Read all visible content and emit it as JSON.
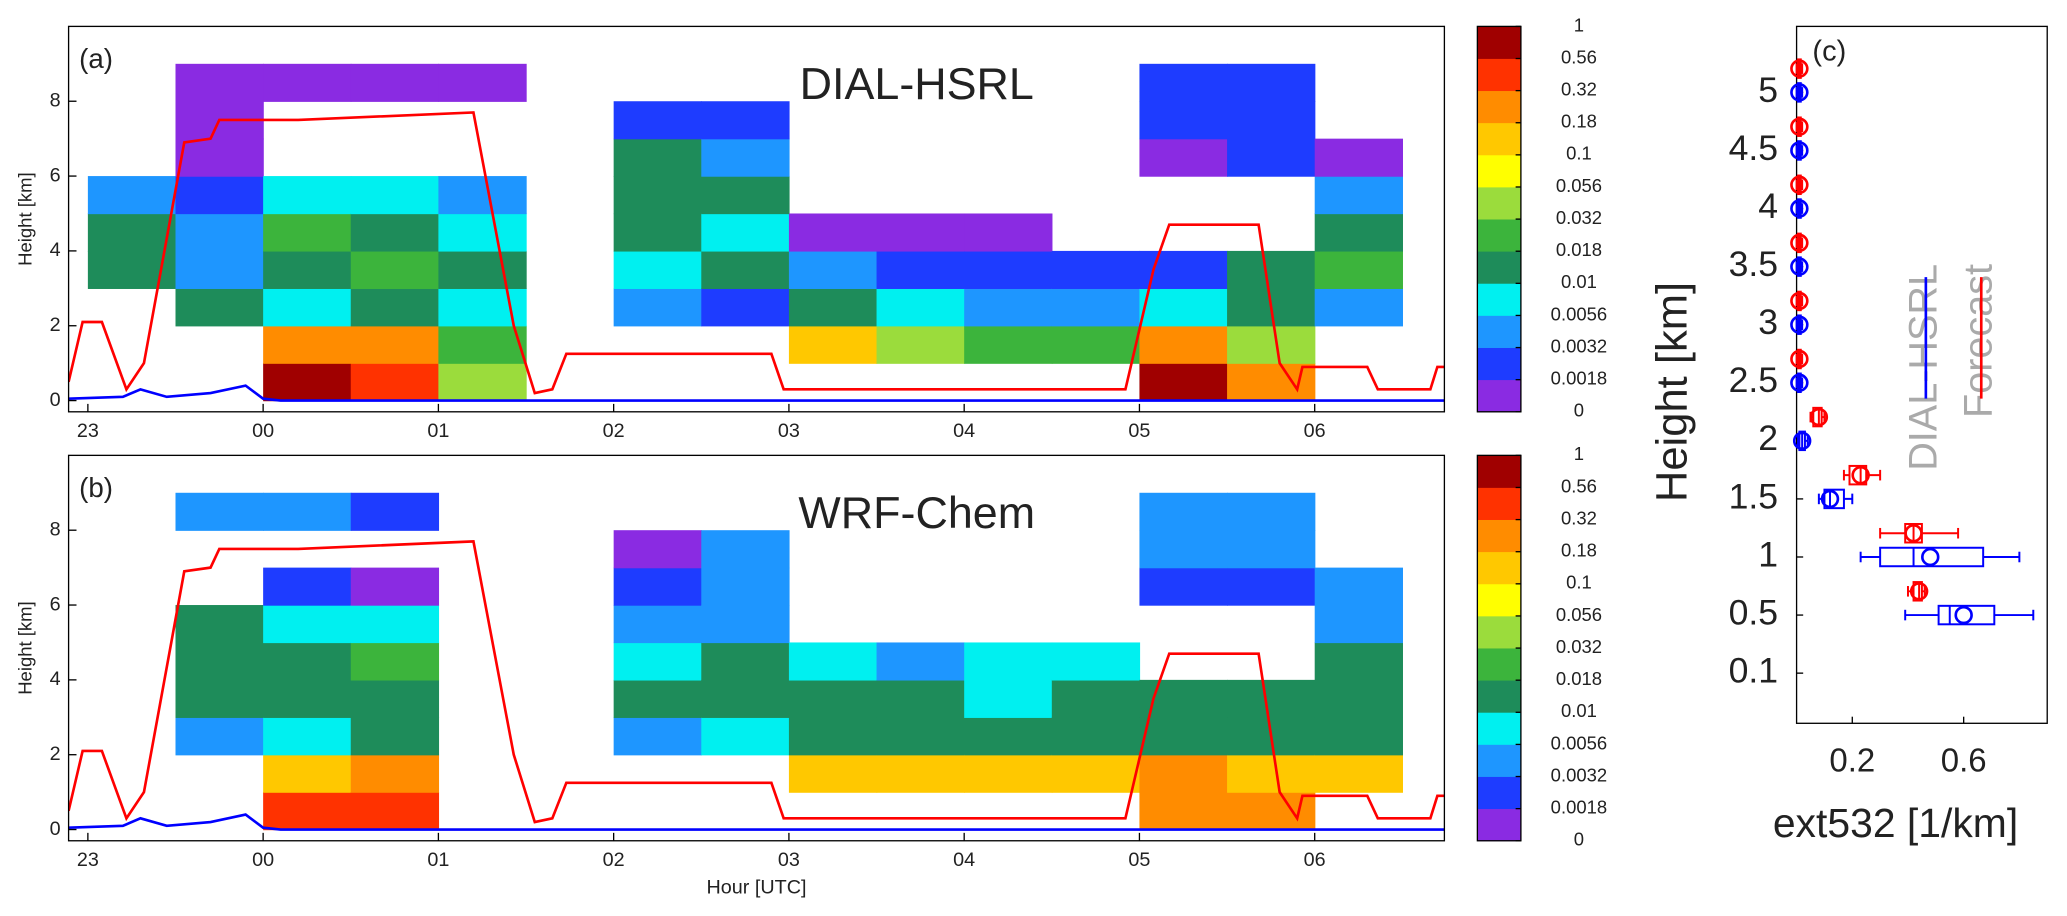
{
  "chart_data": [
    {
      "type": "heatmap",
      "label": "(a)",
      "title": "DIAL-HSRL",
      "ylabel": "Height [km]",
      "xlim": [
        22.89,
        30.74
      ],
      "ylim": [
        -0.3,
        10
      ],
      "xticks": [
        23,
        {
          "value": 24,
          "label": "00"
        },
        {
          "value": 25,
          "label": "01"
        },
        {
          "value": 26,
          "label": "02"
        },
        {
          "value": 27,
          "label": "03"
        },
        {
          "value": 28,
          "label": "04"
        },
        {
          "value": 29,
          "label": "05"
        },
        {
          "value": 30,
          "label": "06"
        }
      ],
      "yticks": [
        0,
        2,
        4,
        6,
        8
      ],
      "x_edges": [
        23,
        23.5,
        24,
        24.5,
        25,
        25.5,
        26,
        26.5,
        27,
        27.5,
        28,
        28.5,
        29,
        29.5,
        30,
        30.5
      ],
      "y_edges": [
        0,
        1,
        2,
        3,
        4,
        5,
        6,
        7,
        8,
        9
      ],
      "z": [
        [
          null,
          null,
          null,
          0.01,
          0.01,
          0.005,
          null,
          null,
          null
        ],
        [
          null,
          null,
          0.01,
          0.005,
          0.005,
          0.003,
          0.001,
          0.001,
          0.001
        ],
        [
          0.6,
          0.3,
          0.008,
          0.015,
          0.02,
          0.008,
          null,
          null,
          0.001
        ],
        [
          0.4,
          0.2,
          0.01,
          0.02,
          0.015,
          0.008,
          null,
          null,
          0.001
        ],
        [
          0.05,
          0.02,
          0.008,
          0.01,
          0.008,
          0.005,
          null,
          null,
          0.001
        ],
        [
          null,
          null,
          null,
          null,
          null,
          null,
          null,
          null,
          null
        ],
        [
          null,
          null,
          0.005,
          0.008,
          0.01,
          0.015,
          0.01,
          0.003,
          null
        ],
        [
          null,
          null,
          0.003,
          0.01,
          0.008,
          0.01,
          0.005,
          0.002,
          null
        ],
        [
          null,
          0.1,
          0.01,
          0.005,
          0.001,
          null,
          null,
          null,
          null
        ],
        [
          null,
          0.05,
          0.008,
          0.003,
          0.001,
          null,
          null,
          null,
          null
        ],
        [
          null,
          0.03,
          0.005,
          0.003,
          0.001,
          null,
          null,
          null,
          null
        ],
        [
          null,
          0.02,
          0.005,
          0.002,
          null,
          null,
          null,
          null,
          null
        ],
        [
          0.6,
          0.2,
          0.008,
          0.003,
          null,
          null,
          0.001,
          0.002,
          0.003
        ],
        [
          0.3,
          0.05,
          0.01,
          0.01,
          null,
          null,
          0.003,
          0.003,
          0.002
        ],
        [
          null,
          null,
          0.005,
          0.02,
          0.01,
          0.005,
          0.001,
          null,
          null
        ]
      ],
      "colorbar": {
        "ticks": [
          0,
          0.0018,
          0.0032,
          0.0056,
          0.01,
          0.018,
          0.032,
          0.056,
          0.1,
          0.18,
          0.32,
          0.56,
          1
        ],
        "colors": [
          "#8a2be2",
          "#1e3cff",
          "#1e96ff",
          "#00f0f0",
          "#1e8c5a",
          "#3cb43c",
          "#9bdc3c",
          "#ffff00",
          "#ffc800",
          "#ff8c00",
          "#ff3200",
          "#a00000"
        ]
      },
      "series": [
        {
          "color": "#ff0000",
          "x": [
            22.89,
            22.97,
            23.08,
            23.22,
            23.32,
            23.55,
            23.7,
            23.75,
            24.2,
            25.2,
            25.43,
            25.55,
            25.65,
            25.73,
            26.9,
            26.97,
            28.92,
            29.08,
            29.17,
            29.68,
            29.8,
            29.9,
            29.93,
            30.3,
            30.36,
            30.66,
            30.7,
            30.74
          ],
          "values": [
            0.5,
            2.1,
            2.1,
            0.3,
            1.0,
            6.9,
            7.0,
            7.5,
            7.5,
            7.7,
            2.0,
            0.2,
            0.3,
            1.25,
            1.25,
            0.3,
            0.3,
            3.5,
            4.7,
            4.7,
            1.0,
            0.3,
            0.9,
            0.9,
            0.3,
            0.3,
            0.9,
            0.9
          ]
        },
        {
          "color": "#0000ff",
          "x": [
            22.89,
            23.2,
            23.3,
            23.45,
            23.7,
            23.9,
            24.0,
            24.1,
            30.74
          ],
          "values": [
            0.05,
            0.1,
            0.3,
            0.1,
            0.2,
            0.4,
            0.05,
            0,
            0
          ]
        }
      ]
    },
    {
      "type": "heatmap",
      "label": "(b)",
      "title": "WRF-Chem",
      "ylabel": "Height [km]",
      "xlabel": "Hour [UTC]",
      "xlim": [
        22.89,
        30.74
      ],
      "ylim": [
        -0.3,
        10
      ],
      "xticks": [
        23,
        {
          "value": 24,
          "label": "00"
        },
        {
          "value": 25,
          "label": "01"
        },
        {
          "value": 26,
          "label": "02"
        },
        {
          "value": 27,
          "label": "03"
        },
        {
          "value": 28,
          "label": "04"
        },
        {
          "value": 29,
          "label": "05"
        },
        {
          "value": 30,
          "label": "06"
        }
      ],
      "yticks": [
        0,
        2,
        4,
        6,
        8
      ],
      "x_edges": [
        23,
        23.5,
        24,
        24.5,
        25,
        25.5,
        26,
        26.5,
        27,
        27.5,
        28,
        28.5,
        29,
        29.5,
        30,
        30.5
      ],
      "y_edges": [
        0,
        1,
        2,
        3,
        4,
        5,
        6,
        7,
        8,
        9
      ],
      "z": [
        [
          null,
          null,
          null,
          null,
          null,
          null,
          null,
          null,
          null
        ],
        [
          null,
          null,
          0.005,
          0.015,
          0.015,
          0.015,
          null,
          null,
          0.005
        ],
        [
          0.4,
          0.15,
          0.008,
          0.015,
          0.015,
          0.008,
          0.003,
          null,
          0.004
        ],
        [
          0.5,
          0.2,
          0.01,
          0.015,
          0.03,
          0.008,
          0.001,
          null,
          0.002
        ],
        [
          null,
          null,
          null,
          null,
          null,
          null,
          null,
          null,
          null
        ],
        [
          null,
          null,
          null,
          null,
          null,
          null,
          null,
          null,
          null
        ],
        [
          null,
          null,
          0.005,
          0.015,
          0.008,
          0.004,
          0.002,
          0.001,
          null
        ],
        [
          null,
          null,
          0.006,
          0.015,
          0.015,
          0.005,
          0.004,
          0.004,
          null
        ],
        [
          null,
          0.15,
          0.015,
          0.015,
          0.006,
          null,
          null,
          null,
          null
        ],
        [
          null,
          0.15,
          0.015,
          0.012,
          0.005,
          null,
          null,
          null,
          null
        ],
        [
          null,
          0.12,
          0.015,
          0.008,
          0.006,
          null,
          null,
          null,
          null
        ],
        [
          null,
          0.1,
          0.015,
          0.012,
          0.006,
          null,
          null,
          null,
          null
        ],
        [
          0.3,
          0.2,
          0.015,
          0.015,
          null,
          null,
          0.003,
          0.004,
          0.005
        ],
        [
          0.2,
          0.1,
          0.015,
          0.015,
          null,
          null,
          0.003,
          0.004,
          0.005
        ],
        [
          null,
          0.1,
          0.015,
          0.015,
          0.01,
          0.005,
          0.004,
          null,
          null
        ]
      ],
      "colorbar": {
        "ticks": [
          0,
          0.0018,
          0.0032,
          0.0056,
          0.01,
          0.018,
          0.032,
          0.056,
          0.1,
          0.18,
          0.32,
          0.56,
          1
        ],
        "colors": [
          "#8a2be2",
          "#1e3cff",
          "#1e96ff",
          "#00f0f0",
          "#1e8c5a",
          "#3cb43c",
          "#9bdc3c",
          "#ffff00",
          "#ffc800",
          "#ff8c00",
          "#ff3200",
          "#a00000"
        ]
      },
      "series": [
        {
          "color": "#ff0000",
          "x": [
            22.89,
            22.97,
            23.08,
            23.22,
            23.32,
            23.55,
            23.7,
            23.75,
            24.2,
            25.2,
            25.43,
            25.55,
            25.65,
            25.73,
            26.9,
            26.97,
            28.92,
            29.08,
            29.17,
            29.68,
            29.8,
            29.9,
            29.93,
            30.3,
            30.36,
            30.66,
            30.7,
            30.74
          ],
          "values": [
            0.5,
            2.1,
            2.1,
            0.3,
            1.0,
            6.9,
            7.0,
            7.5,
            7.5,
            7.7,
            2.0,
            0.2,
            0.3,
            1.25,
            1.25,
            0.3,
            0.3,
            3.5,
            4.7,
            4.7,
            1.0,
            0.3,
            0.9,
            0.9,
            0.3,
            0.3,
            0.9,
            0.9
          ]
        },
        {
          "color": "#0000ff",
          "x": [
            22.89,
            23.2,
            23.3,
            23.45,
            23.7,
            23.9,
            24.0,
            24.1,
            30.74
          ],
          "values": [
            0.05,
            0.1,
            0.3,
            0.1,
            0.2,
            0.4,
            0.05,
            0,
            0
          ]
        }
      ]
    },
    {
      "type": "box",
      "label": "(c)",
      "ylabel": "Height [km]",
      "xlabel": "ext532 [1/km]",
      "xlim": [
        0,
        0.9
      ],
      "xticks": [
        0.2,
        0.6
      ],
      "categories": [
        "0.1",
        "0.5",
        "1",
        "1.5",
        "2",
        "2.5",
        "3",
        "3.5",
        "4",
        "4.5",
        "5"
      ],
      "series": [
        {
          "name": "DIAL-HSRL",
          "color": "#0000ff",
          "min": [
            null,
            0.39,
            0.23,
            0.08,
            0.005,
            0,
            0,
            0,
            0,
            0,
            0
          ],
          "q1": [
            null,
            0.51,
            0.3,
            0.1,
            0.01,
            0.005,
            0.005,
            0.005,
            0.005,
            0.005,
            0.005
          ],
          "median": [
            null,
            0.55,
            0.42,
            0.12,
            0.02,
            0.01,
            0.01,
            0.01,
            0.01,
            0.01,
            0.01
          ],
          "q3": [
            null,
            0.71,
            0.67,
            0.17,
            0.03,
            0.015,
            0.015,
            0.015,
            0.015,
            0.015,
            0.015
          ],
          "max": [
            null,
            0.85,
            0.8,
            0.2,
            0.04,
            0.02,
            0.02,
            0.02,
            0.02,
            0.02,
            0.02
          ],
          "mean": [
            null,
            0.6,
            0.48,
            0.12,
            0.02,
            0.01,
            0.01,
            0.01,
            0.01,
            0.01,
            0.01
          ]
        },
        {
          "name": "Forecast",
          "color": "#ff0000",
          "min": [
            null,
            0.4,
            0.3,
            0.17,
            0.05,
            0,
            0,
            0,
            0,
            0,
            0
          ],
          "q1": [
            null,
            0.42,
            0.39,
            0.19,
            0.06,
            0.005,
            0.005,
            0.005,
            0.005,
            0.005,
            0.005
          ],
          "median": [
            null,
            0.44,
            0.42,
            0.23,
            0.08,
            0.01,
            0.01,
            0.01,
            0.01,
            0.01,
            0.01
          ],
          "q3": [
            null,
            0.45,
            0.45,
            0.25,
            0.09,
            0.015,
            0.015,
            0.015,
            0.015,
            0.015,
            0.015
          ],
          "max": [
            null,
            0.46,
            0.58,
            0.3,
            0.1,
            0.02,
            0.02,
            0.02,
            0.02,
            0.02,
            0.02
          ],
          "mean": [
            null,
            0.44,
            0.42,
            0.23,
            0.08,
            0.01,
            0.01,
            0.01,
            0.01,
            0.01,
            0.01
          ]
        }
      ]
    }
  ]
}
